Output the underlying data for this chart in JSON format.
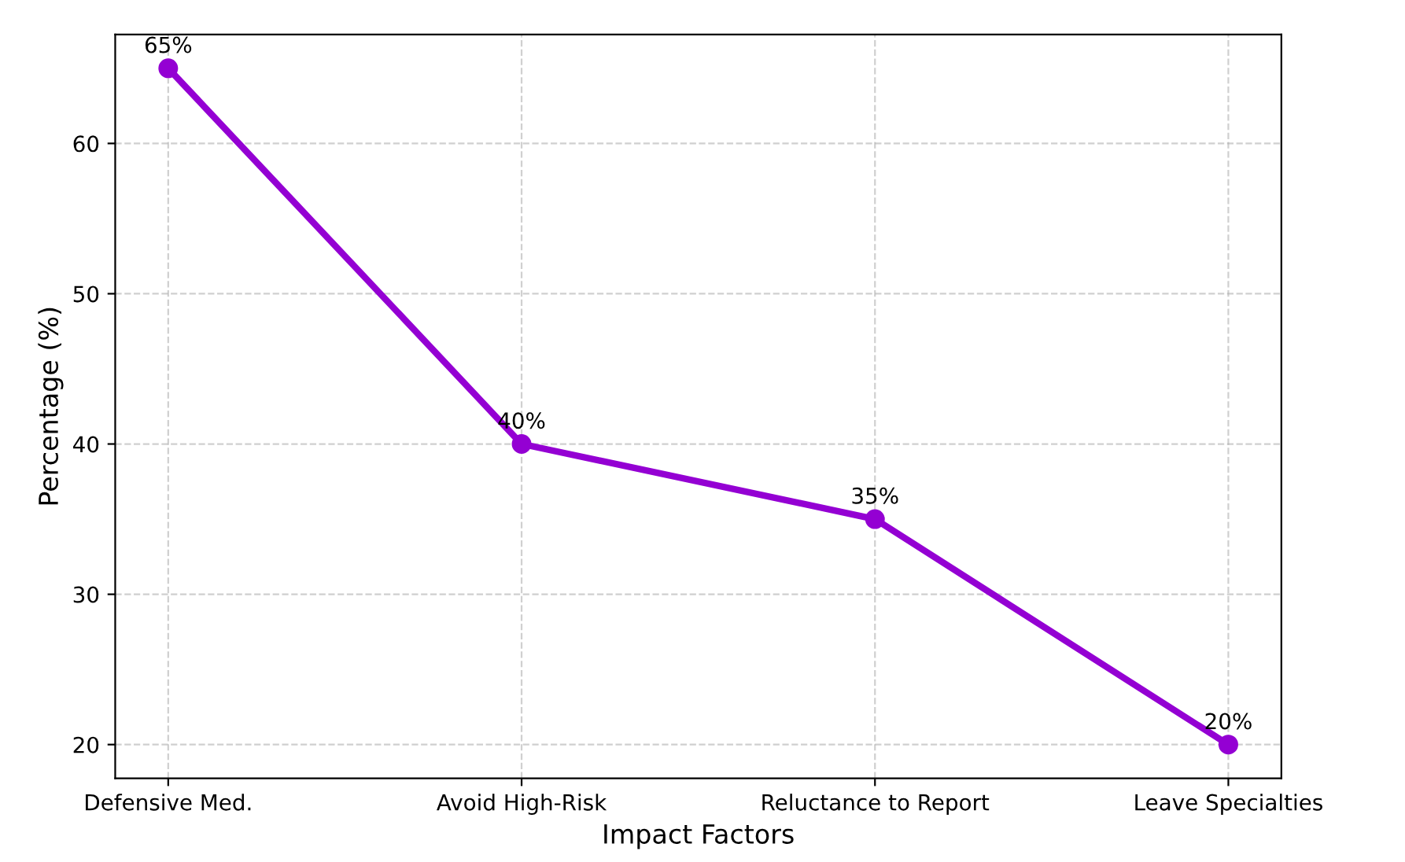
{
  "chart_data": {
    "type": "line",
    "xlabel": "Impact Factors",
    "ylabel": "Percentage (%)",
    "categories": [
      "Defensive Med.",
      "Avoid High-Risk",
      "Reluctance to Report",
      "Leave Specialties"
    ],
    "series": [
      {
        "color": "#9400d3",
        "values": [
          65,
          40,
          35,
          20
        ],
        "value_labels": [
          "65%",
          "40%",
          "35%",
          "20%"
        ]
      }
    ],
    "ylim": [
      17.75,
      67.25
    ],
    "yticks": [
      20,
      30,
      40,
      50,
      60
    ],
    "grid": true,
    "marker": "circle",
    "line_style": "solid"
  }
}
